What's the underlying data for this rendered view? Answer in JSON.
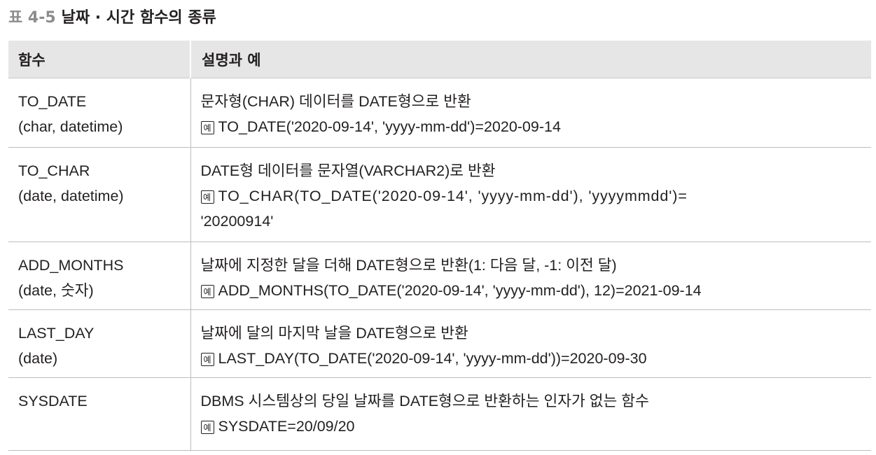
{
  "caption": {
    "number": "표 4-5",
    "title": "날짜 · 시간 함수의 종류"
  },
  "table": {
    "headers": [
      "함수",
      "설명과 예"
    ],
    "example_mark": "예",
    "rows": [
      {
        "func": [
          "TO_DATE",
          "(char, datetime)"
        ],
        "desc": "문자형(CHAR) 데이터를 DATE형으로 반환",
        "example": [
          "TO_DATE('2020-09-14', 'yyyy-mm-dd')=2020-09-14"
        ]
      },
      {
        "func": [
          "TO_CHAR",
          "(date, datetime)"
        ],
        "desc": "DATE형 데이터를 문자열(VARCHAR2)로 반환",
        "example": [
          "TO_CHAR(TO_DATE('2020-09-14', 'yyyy-mm-dd'), 'yyyymmdd')=",
          "'20200914'"
        ]
      },
      {
        "func": [
          "ADD_MONTHS",
          "(date, 숫자)"
        ],
        "desc": "날짜에 지정한 달을 더해 DATE형으로 반환(1: 다음 달, -1: 이전 달)",
        "example": [
          "ADD_MONTHS(TO_DATE('2020-09-14', 'yyyy-mm-dd'), 12)=2021-09-14"
        ]
      },
      {
        "func": [
          "LAST_DAY",
          "(date)"
        ],
        "desc": "날짜에 달의 마지막 날을 DATE형으로 반환",
        "example": [
          "LAST_DAY(TO_DATE('2020-09-14', 'yyyy-mm-dd'))=2020-09-30"
        ]
      },
      {
        "func": [
          "SYSDATE"
        ],
        "desc": "DBMS 시스템상의 당일 날짜를 DATE형으로 반환하는 인자가 없는 함수",
        "example": [
          "SYSDATE=20/09/20"
        ]
      }
    ]
  }
}
